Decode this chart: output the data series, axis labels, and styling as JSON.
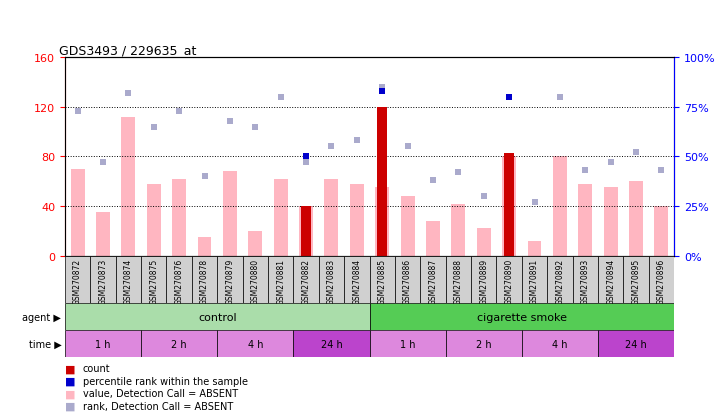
{
  "title": "GDS3493 / 229635_at",
  "samples": [
    "GSM270872",
    "GSM270873",
    "GSM270874",
    "GSM270875",
    "GSM270876",
    "GSM270878",
    "GSM270879",
    "GSM270880",
    "GSM270881",
    "GSM270882",
    "GSM270883",
    "GSM270884",
    "GSM270885",
    "GSM270886",
    "GSM270887",
    "GSM270888",
    "GSM270889",
    "GSM270890",
    "GSM270891",
    "GSM270892",
    "GSM270893",
    "GSM270894",
    "GSM270895",
    "GSM270896"
  ],
  "pink_bars": [
    70,
    35,
    112,
    58,
    62,
    15,
    68,
    20,
    62,
    40,
    62,
    58,
    55,
    48,
    28,
    42,
    22,
    80,
    12,
    80,
    58,
    55,
    60,
    40
  ],
  "rank_bars": [
    73,
    47,
    82,
    65,
    73,
    40,
    68,
    65,
    80,
    47,
    55,
    58,
    85,
    55,
    38,
    42,
    30,
    80,
    27,
    80,
    43,
    47,
    52,
    43
  ],
  "count_bars": [
    0,
    0,
    0,
    0,
    0,
    0,
    0,
    0,
    0,
    40,
    0,
    0,
    120,
    0,
    0,
    0,
    0,
    83,
    0,
    0,
    0,
    0,
    0,
    0
  ],
  "percentile_rank": [
    null,
    null,
    null,
    null,
    null,
    null,
    null,
    null,
    null,
    50,
    null,
    null,
    83,
    null,
    null,
    null,
    null,
    80,
    null,
    null,
    null,
    null,
    null,
    null
  ],
  "ylim_left": [
    0,
    160
  ],
  "ylim_right": [
    0,
    100
  ],
  "yticks_left": [
    0,
    40,
    80,
    120,
    160
  ],
  "yticks_right": [
    0,
    25,
    50,
    75,
    100
  ],
  "pink_bar_color": "#ffb6c1",
  "rank_bar_color": "#aaaacc",
  "count_bar_color": "#cc0000",
  "percentile_color": "#0000cc",
  "agent_control_color": "#90ee90",
  "agent_smoke_color": "#44cc44",
  "time_color_light": "#dd88dd",
  "time_color_dark": "#bb44bb",
  "xticklabel_bg": "#cccccc",
  "background_color": "#ffffff"
}
